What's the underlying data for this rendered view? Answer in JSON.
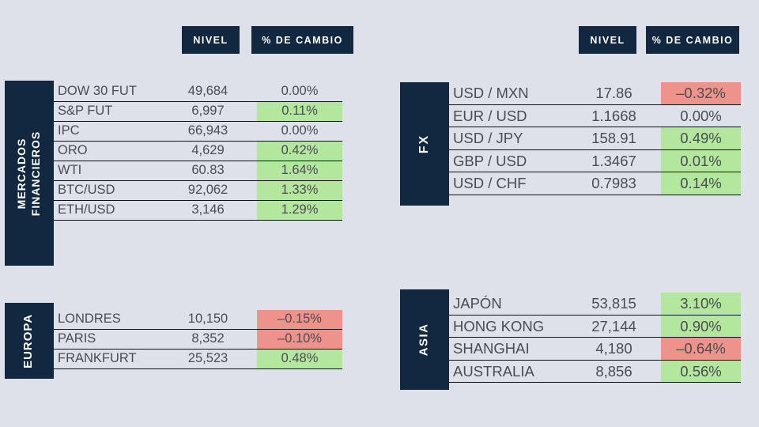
{
  "colors": {
    "background": "#dee1ea",
    "navy": "#112840",
    "positive": "#b4e79e",
    "negative": "#ee938b",
    "text": "#4b4c53",
    "border": "#10121a"
  },
  "column_headers": {
    "level": "NIVEL",
    "change": "% DE CAMBIO"
  },
  "sections": {
    "mercados": {
      "title": "MERCADOS FINANCIEROS",
      "title_line1": "MERCADOS",
      "title_line2": "FINANCIEROS",
      "rows": [
        {
          "label": "DOW 30 FUT",
          "level": "49,684",
          "change": "0.00%",
          "state": "flat"
        },
        {
          "label": "S&P FUT",
          "level": "6,997",
          "change": "0.11%",
          "state": "up"
        },
        {
          "label": "IPC",
          "level": "66,943",
          "change": "0.00%",
          "state": "flat"
        },
        {
          "label": "ORO",
          "level": "4,629",
          "change": "0.42%",
          "state": "up"
        },
        {
          "label": "WTI",
          "level": "60.83",
          "change": "1.64%",
          "state": "up"
        },
        {
          "label": "BTC/USD",
          "level": "92,062",
          "change": "1.33%",
          "state": "up"
        },
        {
          "label": "ETH/USD",
          "level": "3,146",
          "change": "1.29%",
          "state": "up"
        }
      ]
    },
    "europa": {
      "title": "EUROPA",
      "rows": [
        {
          "label": "LONDRES",
          "level": "10,150",
          "change": "–0.15%",
          "state": "down"
        },
        {
          "label": "PARIS",
          "level": "8,352",
          "change": "–0.10%",
          "state": "down"
        },
        {
          "label": "FRANKFURT",
          "level": "25,523",
          "change": "0.48%",
          "state": "up"
        }
      ]
    },
    "fx": {
      "title": "FX",
      "rows": [
        {
          "label": "USD / MXN",
          "level": "17.86",
          "change": "–0.32%",
          "state": "down"
        },
        {
          "label": "EUR / USD",
          "level": "1.1668",
          "change": "0.00%",
          "state": "flat"
        },
        {
          "label": "USD / JPY",
          "level": "158.91",
          "change": "0.49%",
          "state": "up"
        },
        {
          "label": "GBP / USD",
          "level": "1.3467",
          "change": "0.01%",
          "state": "up"
        },
        {
          "label": "USD / CHF",
          "level": "0.7983",
          "change": "0.14%",
          "state": "up"
        }
      ]
    },
    "asia": {
      "title": "ASIA",
      "rows": [
        {
          "label": "JAPÓN",
          "level": "53,815",
          "change": "3.10%",
          "state": "up"
        },
        {
          "label": "HONG KONG",
          "level": "27,144",
          "change": "0.90%",
          "state": "up"
        },
        {
          "label": "SHANGHAI",
          "level": "4,180",
          "change": "–0.64%",
          "state": "down"
        },
        {
          "label": "AUSTRALIA",
          "level": "8,856",
          "change": "0.56%",
          "state": "up"
        }
      ]
    }
  }
}
